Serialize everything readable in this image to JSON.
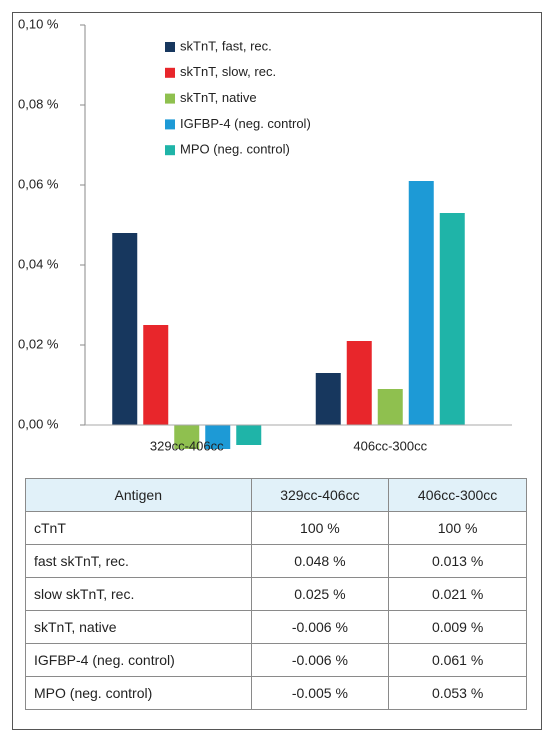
{
  "chart_data": {
    "type": "bar",
    "categories": [
      "329cc-406cc",
      "406cc-300cc"
    ],
    "series": [
      {
        "name": "skTnT, fast, rec.",
        "color": "#17375e",
        "values": [
          0.048,
          0.013
        ]
      },
      {
        "name": "skTnT, slow, rec.",
        "color": "#e8262b",
        "values": [
          0.025,
          0.021
        ]
      },
      {
        "name": "skTnT, native",
        "color": "#8fc04f",
        "values": [
          -0.006,
          0.009
        ]
      },
      {
        "name": "IGFBP-4 (neg. control)",
        "color": "#1d9ad6",
        "values": [
          -0.006,
          0.061
        ]
      },
      {
        "name": "MPO (neg. control)",
        "color": "#1fb4a8",
        "values": [
          -0.005,
          0.053
        ]
      }
    ],
    "ylim": [
      0,
      0.1
    ],
    "yticks": [
      {
        "value": 0,
        "label": "0,00 %"
      },
      {
        "value": 0.02,
        "label": "0,02 %"
      },
      {
        "value": 0.04,
        "label": "0,04 %"
      },
      {
        "value": 0.06,
        "label": "0,06 %"
      },
      {
        "value": 0.08,
        "label": "0,08 %"
      },
      {
        "value": 0.1,
        "label": "0,10 %"
      }
    ],
    "grid": false,
    "legend": "top"
  },
  "table": {
    "header": [
      "Antigen",
      "329cc-406cc",
      "406cc-300cc"
    ],
    "rows": [
      [
        "cTnT",
        "100 %",
        "100 %"
      ],
      [
        "fast skTnT, rec.",
        "0.048 %",
        "0.013 %"
      ],
      [
        "slow skTnT, rec.",
        "0.025 %",
        "0.021 %"
      ],
      [
        "skTnT, native",
        "-0.006 %",
        "0.009 %"
      ],
      [
        "IGFBP-4 (neg. control)",
        "-0.006 %",
        "0.061 %"
      ],
      [
        "MPO (neg. control)",
        "-0.005 %",
        "0.053 %"
      ]
    ]
  }
}
